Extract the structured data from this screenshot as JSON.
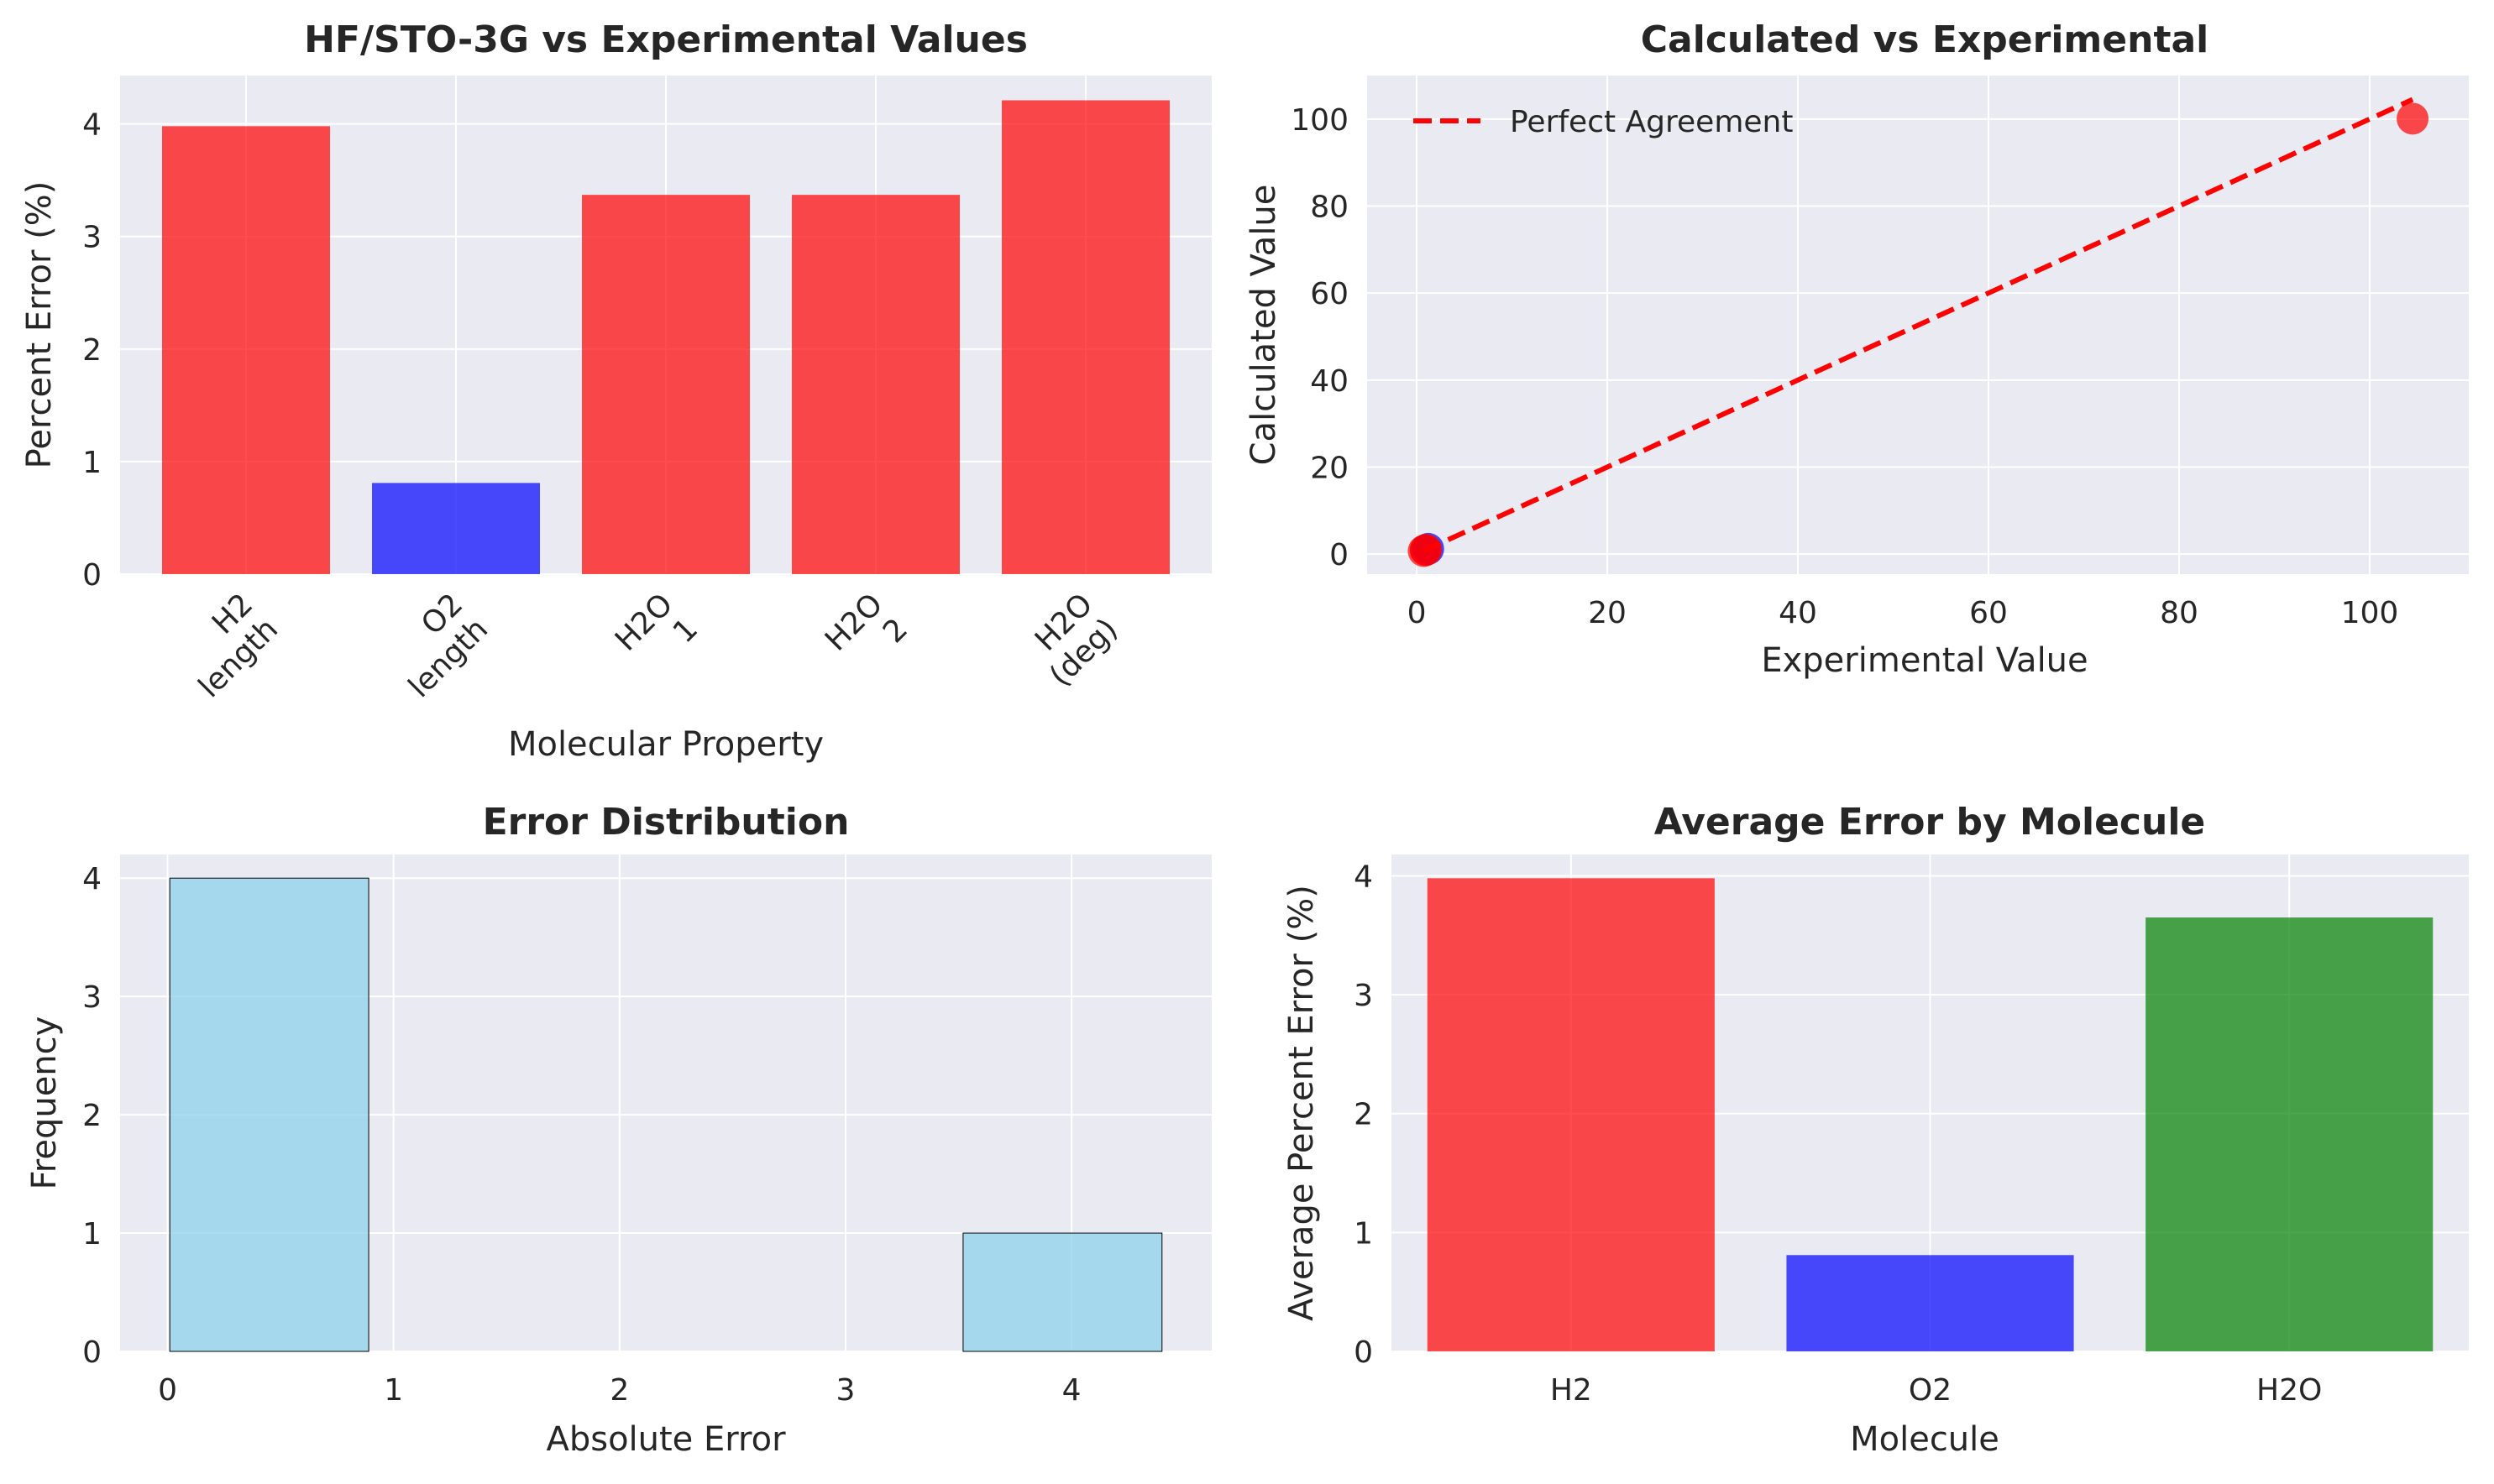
{
  "chart_data": [
    {
      "type": "bar",
      "title": "HF/STO-3G vs Experimental Values",
      "xlabel": "Molecular Property",
      "ylabel": "Percent Error (%)",
      "categories": [
        [
          "H2",
          "length"
        ],
        [
          "O2",
          "length"
        ],
        [
          "H2O",
          "1"
        ],
        [
          "H2O",
          "2"
        ],
        [
          "H2O",
          "(deg)"
        ]
      ],
      "values": [
        3.98,
        0.81,
        3.37,
        3.37,
        4.21
      ],
      "colors": [
        "#ff0000",
        "#0000ff",
        "#ff0000",
        "#ff0000",
        "#ff0000"
      ],
      "ylim": [
        0,
        4.43
      ],
      "yticks": [
        0,
        1,
        2,
        3,
        4
      ],
      "grid": true
    },
    {
      "type": "scatter",
      "title": "Calculated vs Experimental",
      "xlabel": "Experimental Value",
      "ylabel": "Calculated Value",
      "points": [
        {
          "x": 0.74,
          "y": 0.71,
          "color": "#ff0000"
        },
        {
          "x": 1.21,
          "y": 1.2,
          "color": "#0000ff"
        },
        {
          "x": 0.96,
          "y": 0.99,
          "color": "#ff0000"
        },
        {
          "x": 0.96,
          "y": 0.93,
          "color": "#ff0000"
        },
        {
          "x": 104.5,
          "y": 100.1,
          "color": "#ff0000"
        }
      ],
      "reference_line": {
        "label": "Perfect Agreement",
        "x": [
          0.74,
          104.5
        ],
        "y": [
          0.74,
          104.5
        ],
        "color": "#ff0000",
        "style": "dashed"
      },
      "xlim": [
        -5.2,
        110.4
      ],
      "ylim": [
        -4.6,
        110.0
      ],
      "xticks": [
        0,
        20,
        40,
        60,
        80,
        100
      ],
      "yticks": [
        0,
        20,
        40,
        60,
        80,
        100
      ],
      "legend_position": "top-left",
      "grid": true
    },
    {
      "type": "bar",
      "subtype": "histogram",
      "title": "Error Distribution",
      "xlabel": "Absolute Error",
      "ylabel": "Frequency",
      "bins": [
        {
          "start": 0.01,
          "end": 0.89,
          "count": 4
        },
        {
          "start": 0.89,
          "end": 1.76,
          "count": 0
        },
        {
          "start": 1.76,
          "end": 2.64,
          "count": 0
        },
        {
          "start": 2.64,
          "end": 3.52,
          "count": 0
        },
        {
          "start": 3.52,
          "end": 4.4,
          "count": 1
        }
      ],
      "color": "#87ceeb",
      "xlim": [
        -0.21,
        4.62
      ],
      "ylim": [
        0,
        4.2
      ],
      "xticks": [
        0,
        1,
        2,
        3,
        4
      ],
      "yticks": [
        0,
        1,
        2,
        3,
        4
      ],
      "grid": true
    },
    {
      "type": "bar",
      "title": "Average Error by Molecule",
      "xlabel": "Molecule",
      "ylabel": "Average Percent Error (%)",
      "categories": [
        "H2",
        "O2",
        "H2O"
      ],
      "values": [
        3.98,
        0.81,
        3.65
      ],
      "colors": [
        "#ff0000",
        "#0000ff",
        "#008000"
      ],
      "ylim": [
        0,
        4.18
      ],
      "yticks": [
        0,
        1,
        2,
        3,
        4
      ],
      "grid": true
    }
  ]
}
